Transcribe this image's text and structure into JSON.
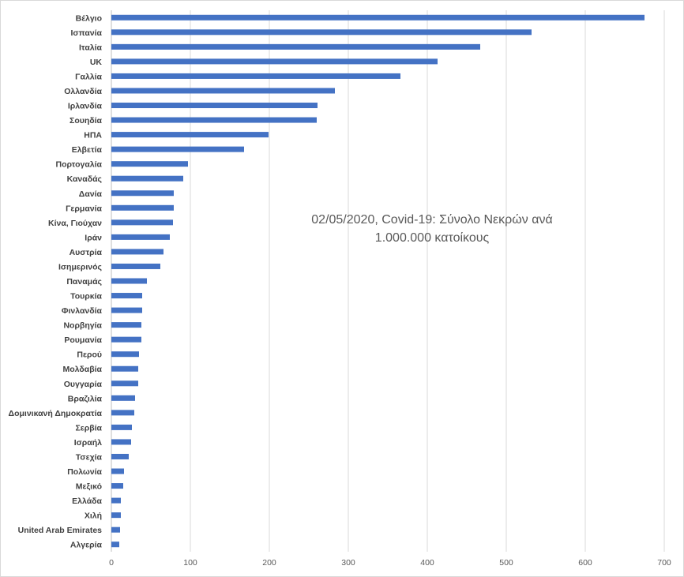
{
  "chart_data": {
    "type": "bar",
    "orientation": "horizontal",
    "title_line1": "02/05/2020, Covid-19: Σύνολο Νεκρών ανά",
    "title_line2": "1.000.000 κατοίκους",
    "xlabel": "",
    "ylabel": "",
    "xlim": [
      0,
      700
    ],
    "xticks": [
      0,
      100,
      200,
      300,
      400,
      500,
      600,
      700
    ],
    "grid": true,
    "legend": "none",
    "bar_color": "#4472c4",
    "categories": [
      "Βέλγιο",
      "Ισπανία",
      "Ιταλία",
      "UK",
      "Γαλλία",
      "Ολλανδία",
      "Ιρλανδία",
      "Σουηδία",
      "ΗΠΑ",
      "Ελβετία",
      "Πορτογαλία",
      "Καναδάς",
      "Δανία",
      "Γερμανία",
      "Κίνα, Γιούχαν",
      "Ιράν",
      "Αυστρία",
      "Ισημερινός",
      "Παναμάς",
      "Τουρκία",
      "Φινλανδία",
      "Νορβηγία",
      "Ρουμανία",
      "Περού",
      "Μολδαβία",
      "Ουγγαρία",
      "Βραζιλία",
      "Δομινικανή Δημοκρατία",
      "Σερβία",
      "Ισραήλ",
      "Τσεχία",
      "Πολωνία",
      "Μεξικό",
      "Ελλάδα",
      "Χιλή",
      "United Arab Emirates",
      "Αλγερία"
    ],
    "values": [
      675,
      532,
      467,
      413,
      366,
      283,
      261,
      260,
      199,
      168,
      97,
      91,
      79,
      79,
      78,
      74,
      66,
      62,
      45,
      39,
      39,
      38,
      38,
      35,
      34,
      34,
      30,
      29,
      26,
      25,
      22,
      16,
      15,
      12,
      12,
      11,
      10
    ]
  }
}
